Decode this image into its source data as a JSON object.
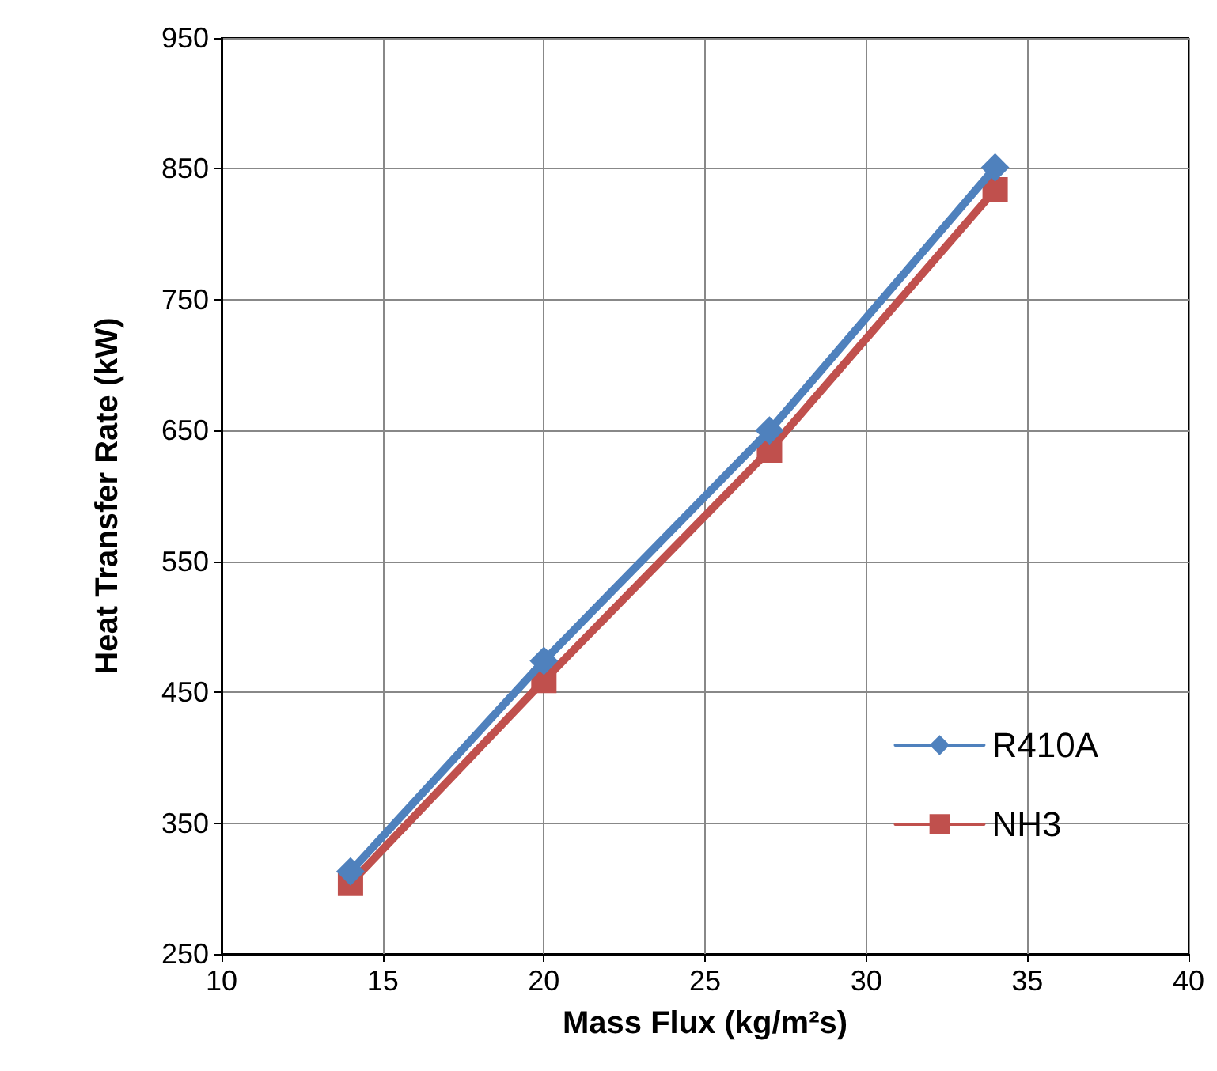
{
  "chart_data": {
    "type": "line",
    "xlabel": "Mass Flux (kg/m²s)",
    "ylabel": "Heat Transfer Rate (kW)",
    "x": [
      14,
      20,
      27,
      34
    ],
    "series": [
      {
        "name": "R410A",
        "color": "#4f81bd",
        "marker": "diamond",
        "values": [
          313,
          474,
          650,
          851
        ]
      },
      {
        "name": "NH3",
        "color": "#c0504d",
        "marker": "square",
        "values": [
          304,
          459,
          635,
          834
        ]
      }
    ],
    "xlim": [
      10,
      40
    ],
    "xticks": [
      10,
      15,
      20,
      25,
      30,
      35,
      40
    ],
    "ylim": [
      250,
      950
    ],
    "yticks": [
      250,
      350,
      450,
      550,
      650,
      750,
      850,
      950
    ],
    "grid": true,
    "legend": "right",
    "line_style": "solid"
  }
}
